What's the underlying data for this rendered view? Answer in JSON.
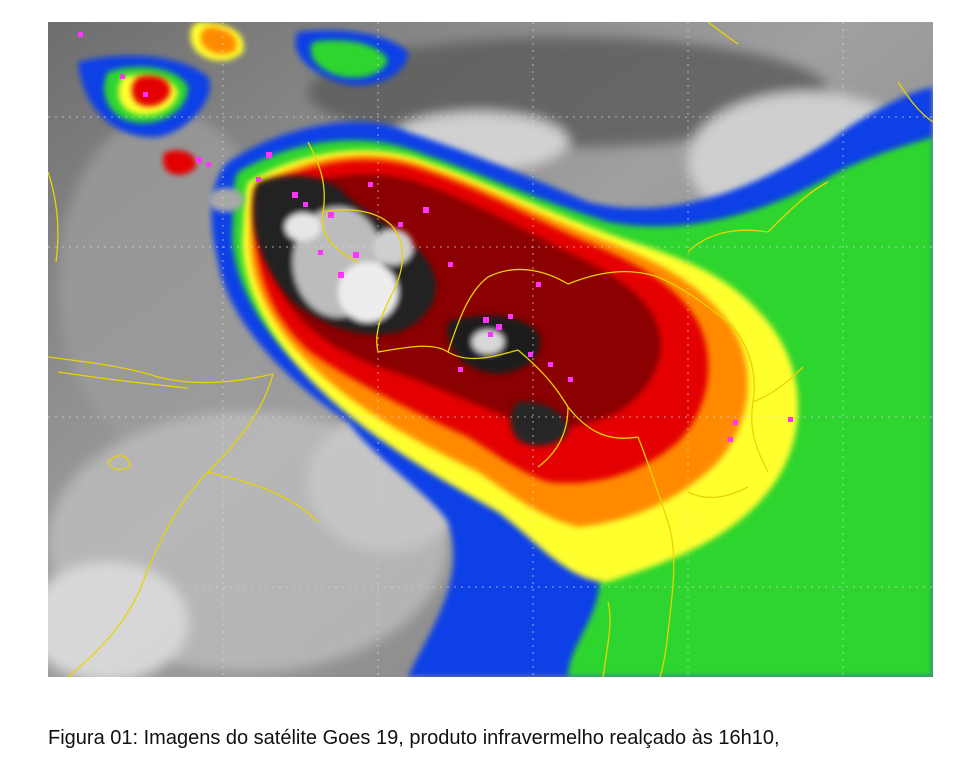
{
  "caption": "Figura 01: Imagens do satélite Goes 19, produto infravermelho realçado às 16h10,",
  "image": {
    "kind": "enhanced-infrared-satellite-image",
    "colors": {
      "coldest_tops": "#ffffff",
      "very_cold": "#2a2a2a",
      "deep_red": "#8b0000",
      "red": "#e60000",
      "orange": "#ff8c00",
      "yellow": "#ffff33",
      "green": "#33dd33",
      "blue": "#0044ee",
      "cloud_gray": "#b4b4b4",
      "borders": "#e8d400",
      "lightning": "#ff33ff",
      "grid": "#d8d8d8"
    }
  }
}
